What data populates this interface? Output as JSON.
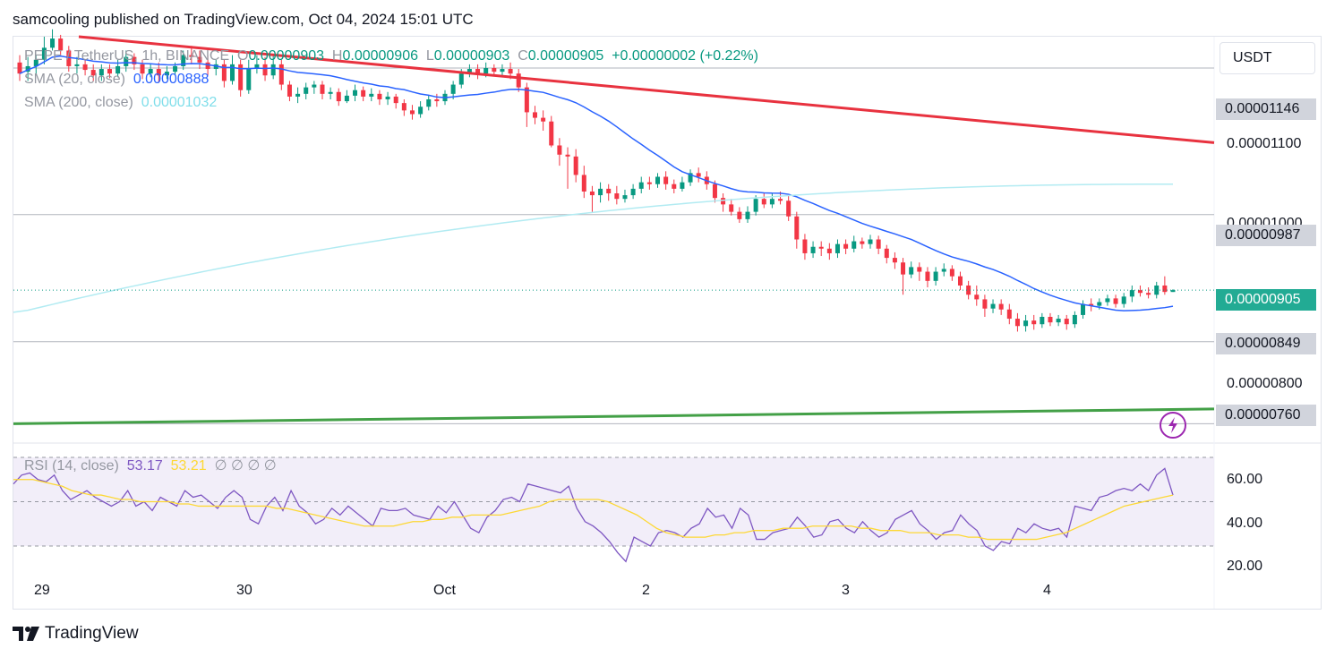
{
  "header": {
    "title": "samcooling published on TradingView.com, Oct 04, 2024 15:01 UTC"
  },
  "legend": {
    "symbol": "PEPE / TetherUS, 1h, BINANCE",
    "open_key": "O",
    "open": "0.00000903",
    "high_key": "H",
    "high": "0.00000906",
    "low_key": "L",
    "low": "0.00000903",
    "close_key": "C",
    "close": "0.00000905",
    "change": "+0.00000002 (+0.22%)",
    "sma20_label": "SMA (20, close)",
    "sma20_value": "0.00000888",
    "sma200_label": "SMA (200, close)",
    "sma200_value": "0.00001032",
    "rsi_label": "RSI (14, close)",
    "rsi_value": "53.17",
    "rsi_ma_value": "53.21",
    "rsi_extra": "∅ ∅ ∅ ∅"
  },
  "unit_button": "USDT",
  "price_levels": {
    "resistance_top": "0.00001146",
    "level_987": "0.00000987",
    "current": "0.00000905",
    "level_849": "0.00000849",
    "support": "0.00000760"
  },
  "price_axis_ticks": [
    "0.00001100",
    "0.00001000",
    "0.00000800"
  ],
  "rsi_axis_ticks": [
    "60.00",
    "40.00",
    "20.00"
  ],
  "time_axis_ticks": [
    "29",
    "30",
    "Oct",
    "2",
    "3",
    "4"
  ],
  "footer": {
    "brand": "TradingView"
  },
  "colors": {
    "bull": "#089981",
    "bear": "#f23645",
    "sma20": "#2962ff",
    "sma200": "#b2ebf2",
    "trend_down": "#e8323f",
    "trend_up": "#43a047",
    "rsi": "#7e57c2",
    "rsi_ma": "#fdd835"
  },
  "chart_data": {
    "type": "line",
    "series": [
      {
        "name": "RSI (14, close)",
        "values": [
          58,
          62,
          63,
          60,
          59,
          62,
          55,
          51,
          53,
          55,
          52,
          50,
          48,
          50,
          55,
          48,
          50,
          46,
          52,
          50,
          48,
          55,
          52,
          53,
          50,
          47,
          52,
          55,
          52,
          42,
          40,
          48,
          52,
          46,
          55,
          48,
          45,
          40,
          42,
          47,
          44,
          48,
          45,
          42,
          39,
          47,
          46,
          46,
          47,
          44,
          43,
          42,
          48,
          45,
          50,
          44,
          38,
          36,
          43,
          46,
          51,
          52,
          50,
          58,
          57,
          56,
          55,
          54,
          57,
          47,
          41,
          39,
          36,
          32,
          27,
          23,
          34,
          32,
          30,
          36,
          37,
          36,
          34,
          38,
          40,
          47,
          43,
          44,
          38,
          47,
          44,
          33,
          33,
          36,
          37,
          38,
          43,
          39,
          34,
          35,
          41,
          42,
          38,
          36,
          41,
          37,
          34,
          36,
          42,
          44,
          46,
          40,
          37,
          33,
          36,
          37,
          44,
          40,
          37,
          30,
          28,
          32,
          31,
          38,
          36,
          40,
          38,
          37,
          38,
          34,
          48,
          47,
          46,
          52,
          53,
          55,
          56,
          55,
          58,
          55,
          62,
          65,
          53
        ],
        "line": "rsi"
      },
      {
        "name": "RSI MA",
        "values": [
          60,
          60,
          60,
          59,
          58,
          57,
          55,
          54,
          53,
          53,
          52,
          51,
          51,
          50,
          50,
          50,
          50,
          49,
          49,
          48,
          48,
          48,
          48,
          48,
          48,
          48,
          48,
          47,
          47,
          46,
          45,
          44,
          43,
          42,
          41,
          40,
          39,
          39,
          39,
          39,
          40,
          41,
          41,
          42,
          42,
          43,
          43,
          44,
          44,
          44,
          44,
          45,
          46,
          47,
          48,
          50,
          51,
          51,
          51,
          51,
          51,
          50,
          48,
          46,
          44,
          41,
          38,
          36,
          35,
          34,
          34,
          34,
          35,
          35,
          36,
          36,
          37,
          37,
          37,
          38,
          38,
          38,
          39,
          39,
          39,
          39,
          39,
          38,
          38,
          37,
          37,
          37,
          36,
          36,
          36,
          35,
          35,
          35,
          34,
          34,
          33,
          33,
          33,
          33,
          33,
          33,
          34,
          35,
          36,
          38,
          40,
          42,
          44,
          46,
          48,
          49,
          50,
          51,
          52,
          53
        ],
        "line": "rsi_ma"
      }
    ],
    "rsi_ylim": [
      20,
      70
    ],
    "price_ylim": [
      7.4e-06,
      1.18e-05
    ],
    "trendlines": [
      {
        "name": "descending resistance",
        "from": [
          0,
          1.18e-05
        ],
        "to": [
          1,
          1.065e-05
        ]
      },
      {
        "name": "ascending support",
        "from": [
          0,
          7.6e-06
        ],
        "to": [
          1,
          7.76e-06
        ]
      }
    ],
    "horizontal_levels": [
      1.146e-05,
      9.87e-06,
      8.49e-06,
      7.6e-06
    ],
    "candles_note": "hourly PEPE/USDT OHLC",
    "candles": [
      [
        1152,
        1140,
        1160,
        1132
      ],
      [
        1142,
        1148,
        1158,
        1132
      ],
      [
        1148,
        1155,
        1160,
        1138
      ],
      [
        1155,
        1168,
        1180,
        1150
      ],
      [
        1168,
        1178,
        1188,
        1165
      ],
      [
        1178,
        1165,
        1182,
        1160
      ],
      [
        1165,
        1148,
        1170,
        1142
      ],
      [
        1148,
        1150,
        1158,
        1140
      ],
      [
        1150,
        1144,
        1155,
        1138
      ],
      [
        1144,
        1138,
        1150,
        1132
      ],
      [
        1138,
        1145,
        1150,
        1132
      ],
      [
        1145,
        1140,
        1150,
        1135
      ],
      [
        1140,
        1148,
        1155,
        1136
      ],
      [
        1148,
        1158,
        1165,
        1142
      ],
      [
        1158,
        1150,
        1162,
        1144
      ],
      [
        1150,
        1140,
        1155,
        1134
      ],
      [
        1140,
        1145,
        1150,
        1136
      ],
      [
        1145,
        1138,
        1152,
        1130
      ],
      [
        1138,
        1142,
        1148,
        1134
      ],
      [
        1142,
        1148,
        1152,
        1138
      ],
      [
        1148,
        1160,
        1165,
        1144
      ],
      [
        1160,
        1158,
        1170,
        1150
      ],
      [
        1158,
        1152,
        1165,
        1145
      ],
      [
        1152,
        1145,
        1160,
        1138
      ],
      [
        1145,
        1150,
        1155,
        1138
      ],
      [
        1150,
        1132,
        1155,
        1125
      ],
      [
        1132,
        1150,
        1160,
        1128
      ],
      [
        1150,
        1122,
        1155,
        1115
      ],
      [
        1122,
        1145,
        1155,
        1118
      ],
      [
        1145,
        1150,
        1160,
        1140
      ],
      [
        1150,
        1138,
        1158,
        1132
      ],
      [
        1138,
        1150,
        1160,
        1134
      ],
      [
        1150,
        1128,
        1155,
        1122
      ],
      [
        1128,
        1115,
        1132,
        1110
      ],
      [
        1115,
        1118,
        1125,
        1108
      ],
      [
        1118,
        1125,
        1130,
        1112
      ],
      [
        1125,
        1128,
        1132,
        1118
      ],
      [
        1128,
        1118,
        1132,
        1112
      ],
      [
        1118,
        1120,
        1125,
        1112
      ],
      [
        1120,
        1110,
        1124,
        1105
      ],
      [
        1110,
        1116,
        1122,
        1108
      ],
      [
        1116,
        1122,
        1128,
        1110
      ],
      [
        1122,
        1115,
        1126,
        1110
      ],
      [
        1115,
        1118,
        1124,
        1110
      ],
      [
        1118,
        1112,
        1122,
        1106
      ],
      [
        1112,
        1115,
        1120,
        1106
      ],
      [
        1115,
        1108,
        1118,
        1102
      ],
      [
        1108,
        1100,
        1112,
        1094
      ],
      [
        1100,
        1096,
        1106,
        1090
      ],
      [
        1096,
        1104,
        1110,
        1092
      ],
      [
        1104,
        1112,
        1116,
        1100
      ],
      [
        1112,
        1110,
        1118,
        1104
      ],
      [
        1110,
        1118,
        1122,
        1106
      ],
      [
        1118,
        1128,
        1132,
        1112
      ],
      [
        1128,
        1140,
        1145,
        1124
      ],
      [
        1140,
        1145,
        1150,
        1136
      ],
      [
        1145,
        1140,
        1150,
        1134
      ],
      [
        1140,
        1146,
        1152,
        1136
      ],
      [
        1146,
        1142,
        1150,
        1138
      ],
      [
        1142,
        1145,
        1150,
        1136
      ],
      [
        1145,
        1140,
        1152,
        1134
      ],
      [
        1140,
        1125,
        1145,
        1120
      ],
      [
        1125,
        1098,
        1130,
        1082
      ],
      [
        1098,
        1092,
        1105,
        1085
      ],
      [
        1092,
        1088,
        1100,
        1078
      ],
      [
        1088,
        1062,
        1094,
        1060
      ],
      [
        1062,
        1052,
        1070,
        1040
      ],
      [
        1052,
        1050,
        1060,
        1015
      ],
      [
        1050,
        1030,
        1058,
        1022
      ],
      [
        1030,
        1012,
        1040,
        1005
      ],
      [
        1012,
        1008,
        1018,
        990
      ],
      [
        1008,
        1015,
        1022,
        1000
      ],
      [
        1015,
        1010,
        1020,
        1002
      ],
      [
        1010,
        1004,
        1018,
        998
      ],
      [
        1004,
        1008,
        1014,
        1000
      ],
      [
        1008,
        1015,
        1020,
        1004
      ],
      [
        1015,
        1022,
        1028,
        1010
      ],
      [
        1022,
        1020,
        1028,
        1014
      ],
      [
        1020,
        1028,
        1032,
        1016
      ],
      [
        1028,
        1020,
        1034,
        1014
      ],
      [
        1020,
        1015,
        1025,
        1010
      ],
      [
        1015,
        1022,
        1028,
        1012
      ],
      [
        1022,
        1032,
        1036,
        1018
      ],
      [
        1032,
        1028,
        1038,
        1022
      ],
      [
        1028,
        1020,
        1034,
        1014
      ],
      [
        1020,
        1005,
        1024,
        1000
      ],
      [
        1005,
        998,
        1010,
        990
      ],
      [
        998,
        990,
        1004,
        986
      ],
      [
        990,
        982,
        995,
        978
      ],
      [
        982,
        990,
        996,
        978
      ],
      [
        990,
        1004,
        1008,
        986
      ],
      [
        1004,
        998,
        1010,
        994
      ],
      [
        998,
        1004,
        1010,
        994
      ],
      [
        1004,
        1002,
        1012,
        998
      ],
      [
        1002,
        985,
        1008,
        980
      ],
      [
        985,
        960,
        990,
        950
      ],
      [
        960,
        945,
        966,
        938
      ],
      [
        945,
        952,
        958,
        940
      ],
      [
        952,
        950,
        958,
        942
      ],
      [
        950,
        945,
        956,
        938
      ],
      [
        945,
        955,
        960,
        940
      ],
      [
        955,
        950,
        960,
        944
      ],
      [
        950,
        958,
        964,
        946
      ],
      [
        958,
        955,
        962,
        950
      ],
      [
        955,
        960,
        965,
        950
      ],
      [
        960,
        950,
        964,
        944
      ],
      [
        950,
        940,
        954,
        934
      ],
      [
        940,
        935,
        946,
        928
      ],
      [
        935,
        922,
        940,
        900
      ],
      [
        922,
        930,
        936,
        918
      ],
      [
        930,
        925,
        935,
        915
      ],
      [
        925,
        915,
        930,
        908
      ],
      [
        915,
        925,
        930,
        910
      ],
      [
        925,
        928,
        934,
        920
      ],
      [
        928,
        920,
        932,
        915
      ],
      [
        920,
        910,
        925,
        905
      ],
      [
        910,
        900,
        915,
        895
      ],
      [
        900,
        895,
        910,
        888
      ],
      [
        895,
        885,
        900,
        876
      ],
      [
        885,
        890,
        895,
        880
      ],
      [
        890,
        884,
        895,
        878
      ],
      [
        884,
        874,
        890,
        868
      ],
      [
        874,
        866,
        880,
        860
      ],
      [
        866,
        872,
        878,
        860
      ],
      [
        872,
        868,
        878,
        862
      ],
      [
        868,
        876,
        880,
        864
      ],
      [
        876,
        870,
        880,
        866
      ],
      [
        870,
        874,
        878,
        866
      ],
      [
        874,
        868,
        878,
        862
      ],
      [
        868,
        878,
        882,
        864
      ],
      [
        878,
        890,
        894,
        874
      ],
      [
        890,
        888,
        896,
        882
      ],
      [
        888,
        892,
        896,
        884
      ],
      [
        892,
        896,
        900,
        888
      ],
      [
        896,
        890,
        900,
        886
      ],
      [
        890,
        898,
        902,
        886
      ],
      [
        898,
        905,
        910,
        892
      ],
      [
        905,
        902,
        910,
        898
      ],
      [
        902,
        900,
        908,
        896
      ],
      [
        900,
        910,
        914,
        896
      ],
      [
        910,
        903,
        920,
        900
      ],
      [
        903,
        905,
        906,
        903
      ]
    ]
  }
}
